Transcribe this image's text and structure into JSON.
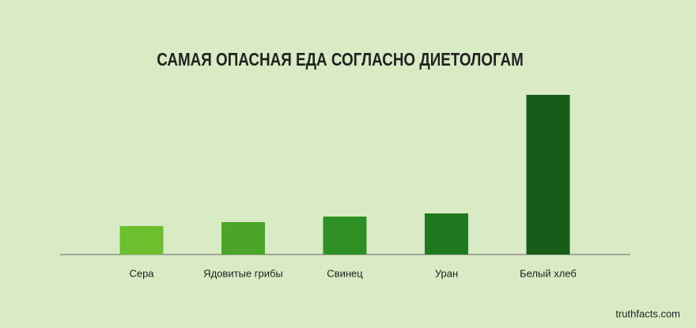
{
  "chart_data": {
    "type": "bar",
    "title": "САМАЯ ОПАСНАЯ ЕДА СОГЛАСНО ДИЕТОЛОГАМ",
    "categories": [
      "Сера",
      "Ядовитые грибы",
      "Свинец",
      "Уран",
      "Белый хлеб"
    ],
    "values": [
      36,
      41,
      48,
      52,
      202
    ],
    "colors": [
      "#6dbf2e",
      "#4aa529",
      "#2e8f24",
      "#1f7a1f",
      "#165c18"
    ],
    "ylim": [
      0,
      210
    ]
  },
  "footer": "truthfacts.com"
}
